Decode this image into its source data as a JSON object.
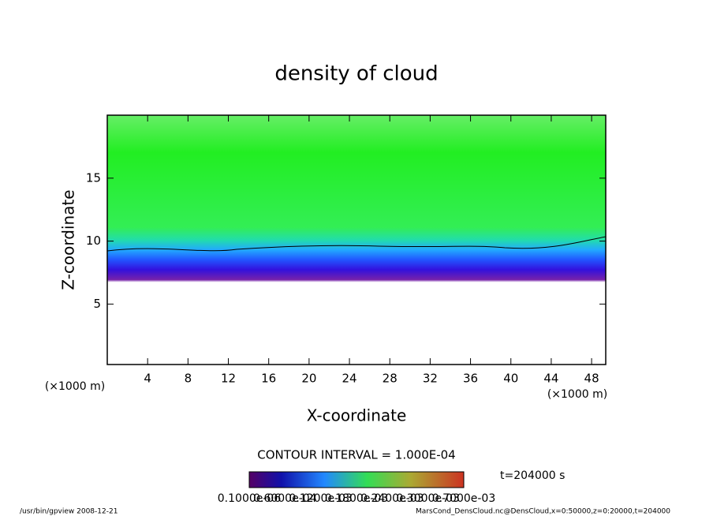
{
  "chart_data": {
    "type": "contour",
    "title": "density of cloud",
    "x_label": "X-coordinate",
    "y_label": "Z-coordinate",
    "x_unit": "(×1000 m)",
    "y_unit": "(×1000 m)",
    "xlim": [
      0,
      49.4
    ],
    "ylim": [
      0.2,
      20
    ],
    "xticks": [
      4,
      8,
      12,
      16,
      20,
      24,
      28,
      32,
      36,
      40,
      44,
      48
    ],
    "yticks": [
      5,
      10,
      15
    ],
    "contour_interval": "CONTOUR INTERVAL = 1.000E-04",
    "time_label": "t=204000 s",
    "colorbar_labels": [
      "0.1000e-06",
      "0.6000e-04",
      "0.1200e-03",
      "0.1800e-03",
      "0.2400e-03",
      "0.3000e-03",
      "0.7000e-03"
    ],
    "footer_left": "/usr/bin/gpview   2008-12-21",
    "footer_right": "MarsCond_DensCloud.nc@DensCloud,x=0:50000,z=0:20000,t=204000"
  }
}
